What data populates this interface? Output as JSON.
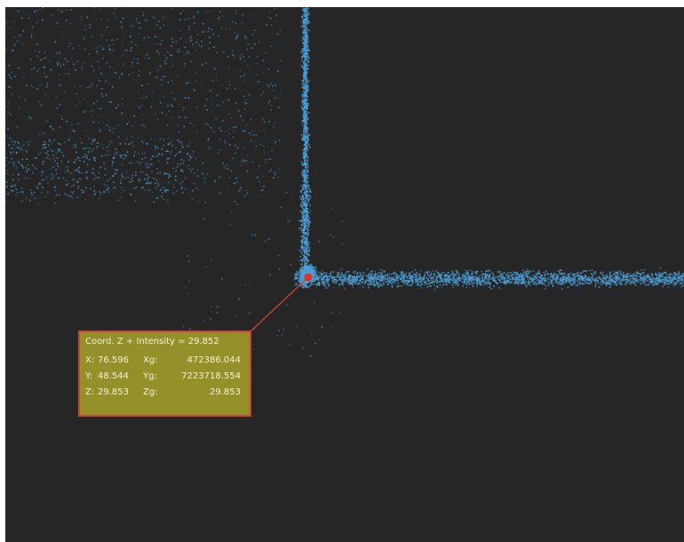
{
  "colors": {
    "background": "#262626",
    "points": "#4d9fd6",
    "picked_point": "#e0322d",
    "leader_line": "#c9433a",
    "label_background": "#96902b",
    "label_border": "#c9433a",
    "label_text": "#f3f1d8"
  },
  "point_label": {
    "title": "Coord. Z + Intensity = 29.852",
    "rows": [
      {
        "axis": "X:",
        "local": "76.596",
        "global_axis": "Xg:",
        "global": "472386.044"
      },
      {
        "axis": "Y:",
        "local": "48.544",
        "global_axis": "Yg:",
        "global": "7223718.554"
      },
      {
        "axis": "Z:",
        "local": "29.853",
        "global_axis": "Zg:",
        "global": "29.853"
      }
    ]
  }
}
